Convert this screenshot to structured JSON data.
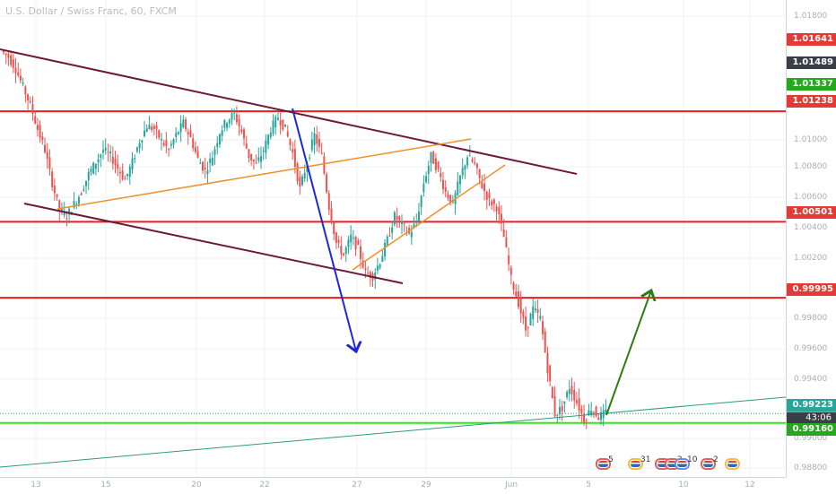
{
  "title": "U.S. Dollar / Swiss Franc, 60, FXCM",
  "colors": {
    "up": "#26a69a",
    "down": "#ef5350",
    "resistance": "#ee1c1c",
    "support": "#2ee81a",
    "channel": "#6d1a3a",
    "wedge": "#f0902a",
    "blue_arrow": "#1f28d8",
    "green_arrow": "#2e7d14",
    "trendline": "#2e9c7c",
    "current_price": "#3a3f47"
  },
  "price_axis": {
    "ticks": [
      "1.01800",
      "1.01000",
      "1.00800",
      "1.00600",
      "1.00400",
      "1.00200",
      "0.99800",
      "0.99600",
      "0.99400",
      "0.99000",
      "0.98800"
    ]
  },
  "price_tags": [
    {
      "label": "1.01641",
      "color": "#e53935"
    },
    {
      "label": "1.01489",
      "color": "#3a3f47"
    },
    {
      "label": "1.01337",
      "color": "#26a81e"
    },
    {
      "label": "1.01238",
      "color": "#e53935"
    },
    {
      "label": "1.00501",
      "color": "#e53935"
    },
    {
      "label": "0.99995",
      "color": "#e53935"
    },
    {
      "label": "0.99223",
      "color": "#26a69a"
    },
    {
      "label": "43:06",
      "color": "#3a3f47"
    },
    {
      "label": "0.99160",
      "color": "#26a81e"
    }
  ],
  "time_axis": {
    "labels": [
      "13",
      "15",
      "20",
      "22",
      "27",
      "29",
      "Jun",
      "5",
      "10",
      "12"
    ]
  },
  "events": {
    "counts": [
      "5",
      "31",
      "2",
      "10",
      "2"
    ]
  },
  "chart_data": {
    "type": "candlestick",
    "title": "U.S. Dollar / Swiss Franc, 60, FXCM",
    "ylim": [
      0.988,
      1.0198
    ],
    "horizontal_levels": [
      {
        "value": 1.01238,
        "color": "#ee1c1c",
        "label": "1.01238"
      },
      {
        "value": 1.00501,
        "color": "#ee1c1c",
        "label": "1.00501"
      },
      {
        "value": 0.99995,
        "color": "#ee1c1c",
        "label": "0.99995"
      },
      {
        "value": 0.9916,
        "color": "#2ee81a",
        "label": "0.99160"
      }
    ],
    "last_price": 0.99223,
    "series": [
      {
        "values": [
          1.016,
          1.0152,
          1.014,
          1.0128,
          1.0112,
          1.0098,
          1.0076,
          1.0058,
          1.0054,
          1.0062,
          1.007,
          1.0082,
          1.009,
          1.0098,
          1.0094,
          1.0086,
          1.0078,
          1.009,
          1.0104,
          1.0114,
          1.0112,
          1.0104,
          1.0098,
          1.0108,
          1.0116,
          1.0106,
          1.0092,
          1.0084,
          1.0094,
          1.011,
          1.0118,
          1.0122,
          1.011,
          1.0094,
          1.0088,
          1.0098,
          1.0112,
          1.012,
          1.0112,
          1.0096,
          1.0072,
          1.009,
          1.0108,
          1.0094,
          1.006,
          1.0036,
          1.0028,
          1.004,
          1.0032,
          1.0016,
          1.0014,
          1.0024,
          1.0038,
          1.0054,
          1.0048,
          1.0042,
          1.005,
          1.0076,
          1.0094,
          1.0084,
          1.007,
          1.0062,
          1.008,
          1.0094,
          1.0088,
          1.0074,
          1.0064,
          1.006,
          1.004,
          1.0012,
          0.9996,
          0.9978,
          0.9992,
          0.9986,
          0.9952,
          0.9922,
          0.9926,
          0.994,
          0.993,
          0.9918,
          0.9926,
          0.992,
          0.9923
        ]
      }
    ]
  }
}
